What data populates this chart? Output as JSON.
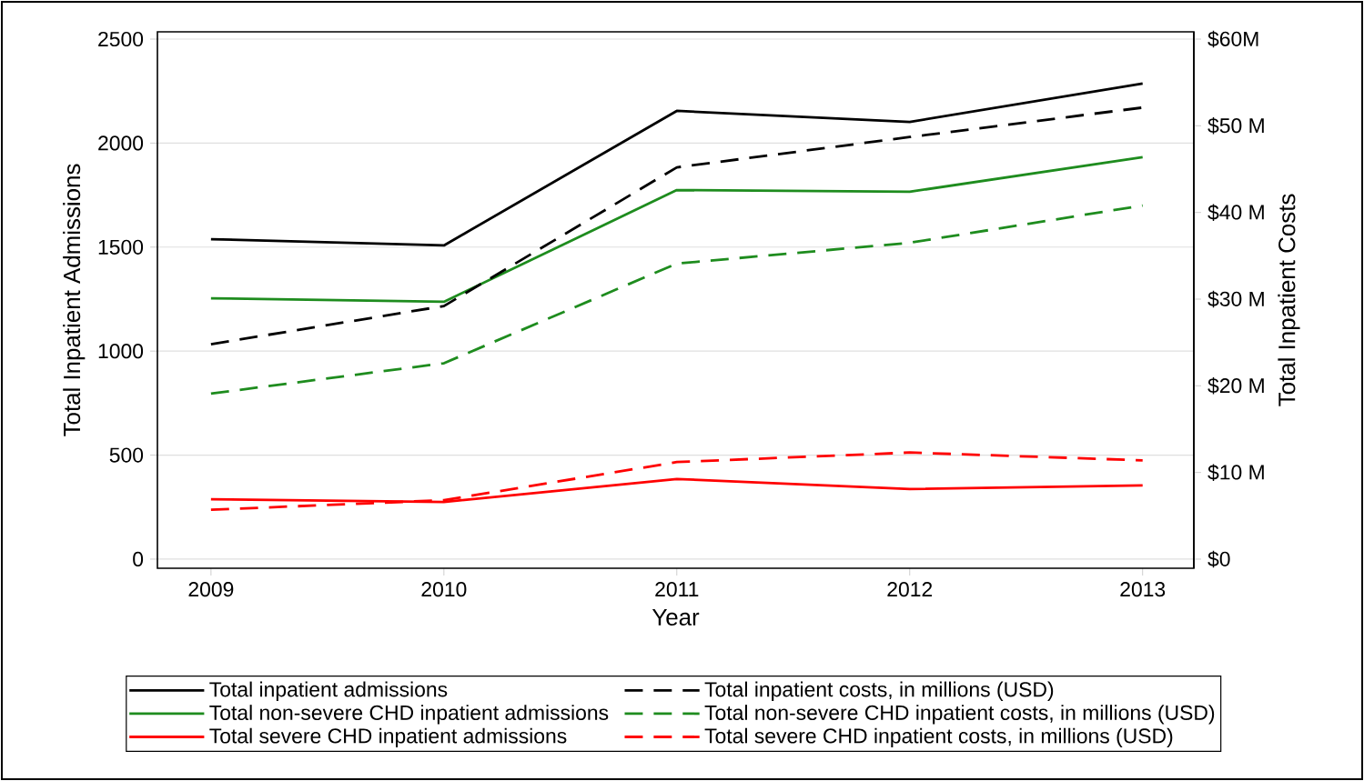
{
  "chart_data": {
    "type": "line",
    "xlabel": "Year",
    "ylabel": "Total Inpatient Admissions",
    "y2label": "Total Inpatient Costs",
    "x": [
      2009,
      2010,
      2011,
      2012,
      2013
    ],
    "xlim": [
      2008.77,
      2013.22
    ],
    "xticks": [
      2009,
      2010,
      2011,
      2012,
      2013
    ],
    "ylim": [
      -44,
      2535
    ],
    "yticks": [
      0,
      500,
      1000,
      1500,
      2000,
      2500
    ],
    "y2lim": [
      -1.05,
      60.84
    ],
    "y2ticks": [
      {
        "value": 0,
        "label": "$0"
      },
      {
        "value": 10,
        "label": "$10 M"
      },
      {
        "value": 20,
        "label": "$20 M"
      },
      {
        "value": 30,
        "label": "$30 M"
      },
      {
        "value": 40,
        "label": "$40 M"
      },
      {
        "value": 50,
        "label": "$50 M"
      },
      {
        "value": 60,
        "label": "$60M"
      }
    ],
    "grid": "y",
    "legend": "bottom",
    "marker": "none",
    "series": [
      {
        "name": "Total inpatient admissions",
        "color": "#000000",
        "line_style": "solid",
        "values": [
          1538,
          1508,
          2155,
          2102,
          2286
        ]
      },
      {
        "name": "Total non-severe CHD inpatient admissions",
        "color": "#1e8c1e",
        "line_style": "solid",
        "values": [
          1254,
          1237,
          1774,
          1766,
          1932
        ]
      },
      {
        "name": "Total severe CHD inpatient admissions",
        "color": "#ff0000",
        "line_style": "solid",
        "values": [
          288,
          275,
          385,
          337,
          354
        ]
      },
      {
        "name": "Total inpatient costs, in millions (USD)",
        "color": "#000000",
        "line_style": "dashed",
        "axis": "y2",
        "values": [
          24.8,
          29.2,
          45.2,
          48.7,
          52.1
        ]
      },
      {
        "name": "Total non-severe CHD inpatient costs, in millions (USD)",
        "color": "#1e8c1e",
        "line_style": "dashed",
        "axis": "y2",
        "values": [
          19.1,
          22.6,
          34.1,
          36.5,
          40.8
        ]
      },
      {
        "name": "Total severe CHD inpatient costs, in millions (USD)",
        "color": "#ff0000",
        "line_style": "dashed",
        "axis": "y2",
        "values": [
          5.7,
          6.8,
          11.2,
          12.3,
          11.4
        ]
      }
    ]
  }
}
